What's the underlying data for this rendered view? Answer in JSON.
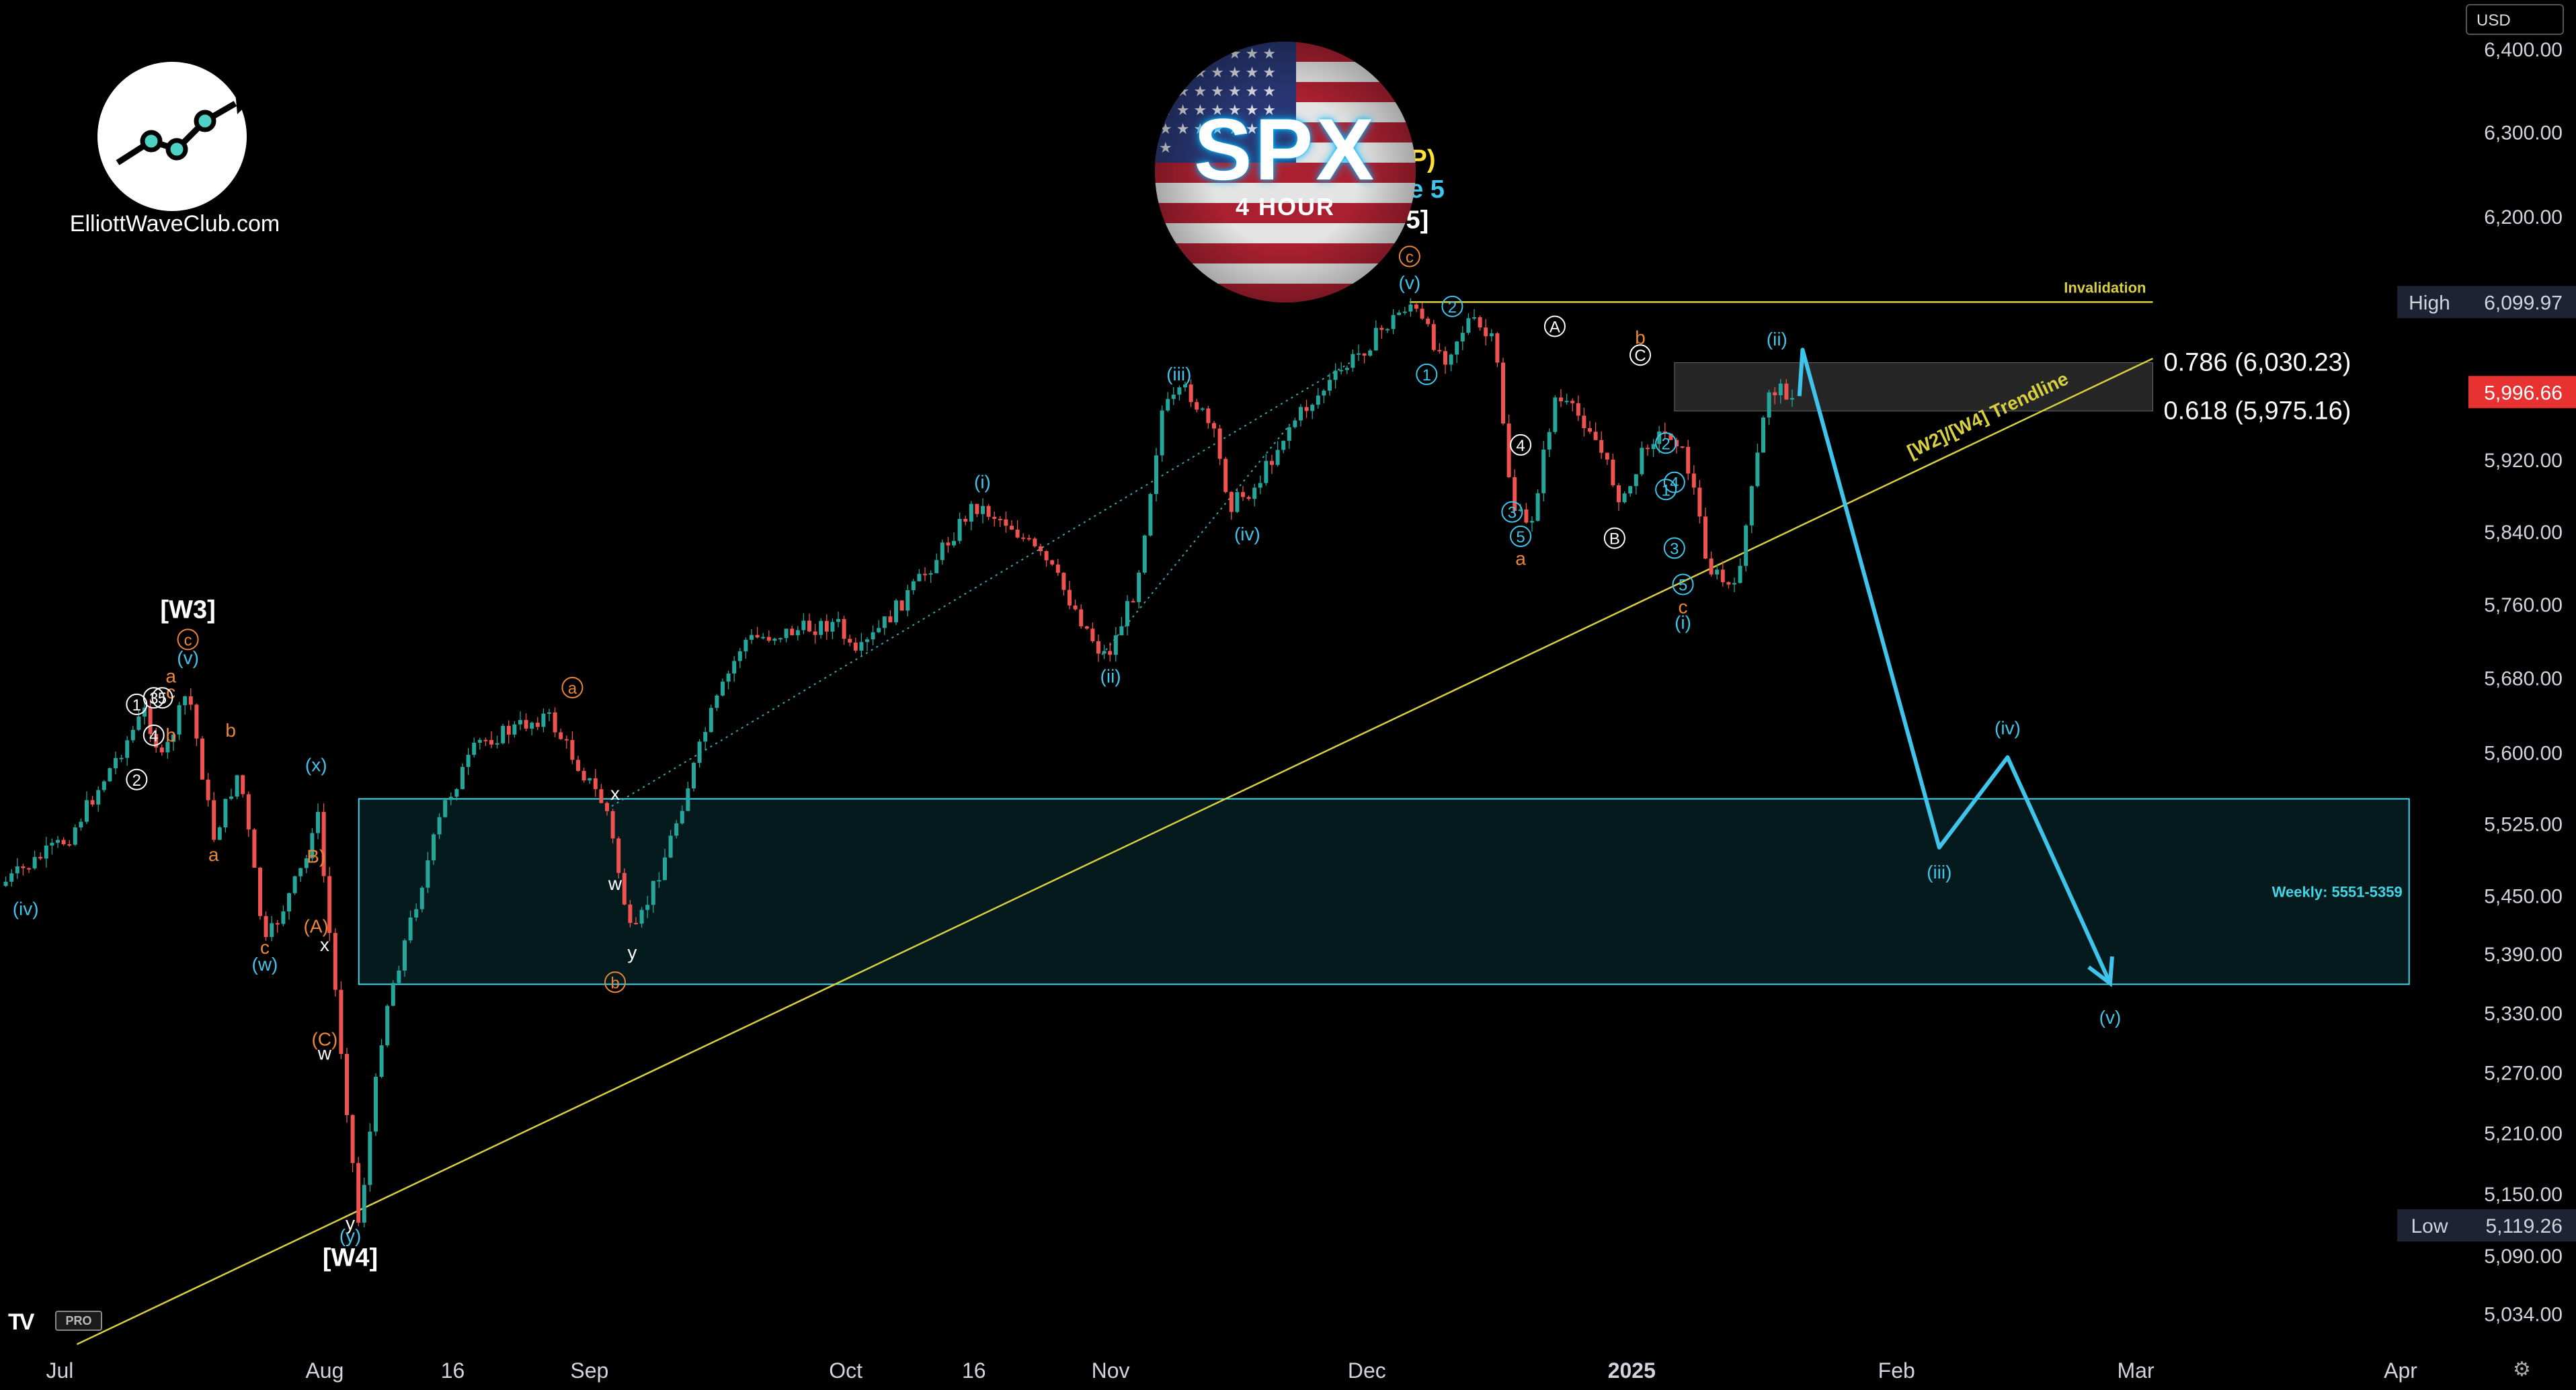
{
  "branding": {
    "site": "ElliottWaveClub.com",
    "ticker": "SPX",
    "timeframe": "4 HOUR",
    "platform_badge": "PRO",
    "currency": "USD"
  },
  "colors": {
    "background": "#000000",
    "bull_candle": "#26a69a",
    "bear_candle": "#ef5350",
    "wave_cyan": "#3fc4ec",
    "wave_orange": "#e8873a",
    "wave_white": "#ffffff",
    "trendline": "#d8d040",
    "zone_cyan": "#3fd6e8",
    "price_tag_red": "#e83232"
  },
  "chart_data": {
    "type": "candlestick",
    "title": "SPX",
    "subtitle": "4 HOUR",
    "x_axis": {
      "labels": [
        "Jul",
        "Aug",
        "16",
        "Sep",
        "Oct",
        "16",
        "Nov",
        "Dec",
        "2025",
        "Feb",
        "Mar",
        "Apr"
      ],
      "label_dates": [
        "2024-07-01",
        "2024-08-01",
        "2024-08-16",
        "2024-09-01",
        "2024-10-01",
        "2024-10-16",
        "2024-11-01",
        "2024-12-01",
        "2025-01-01",
        "2025-02-01",
        "2025-03-01",
        "2025-04-01"
      ],
      "range": [
        "2024-06-24",
        "2025-04-08"
      ]
    },
    "y_axis": {
      "position": "right",
      "labels": [
        "6,400.00",
        "6,300.00",
        "6,200.00",
        "5,920.00",
        "5,840.00",
        "5,760.00",
        "5,680.00",
        "5,600.00",
        "5,525.00",
        "5,450.00",
        "5,390.00",
        "5,330.00",
        "5,270.00",
        "5,210.00",
        "5,150.00",
        "5,090.00",
        "5,034.00"
      ],
      "range": [
        5005,
        6460
      ],
      "scale": "log"
    },
    "price_tags": {
      "high": {
        "label": "High",
        "value": "6,099.97"
      },
      "last": {
        "value": "5,996.66"
      },
      "low": {
        "label": "Low",
        "value": "5,119.26"
      }
    },
    "price_path": [
      [
        "2024-06-24",
        5460
      ],
      [
        "2024-07-02",
        5510
      ],
      [
        "2024-07-11",
        5645
      ],
      [
        "2024-07-13",
        5590
      ],
      [
        "2024-07-16",
        5668
      ],
      [
        "2024-07-19",
        5510
      ],
      [
        "2024-07-22",
        5582
      ],
      [
        "2024-07-25",
        5398
      ],
      [
        "2024-07-30",
        5490
      ],
      [
        "2024-07-31",
        5550
      ],
      [
        "2024-08-05",
        5119.26
      ],
      [
        "2024-08-08",
        5330
      ],
      [
        "2024-08-15",
        5545
      ],
      [
        "2024-08-19",
        5610
      ],
      [
        "2024-08-27",
        5640
      ],
      [
        "2024-09-03",
        5540
      ],
      [
        "2024-09-06",
        5402
      ],
      [
        "2024-09-10",
        5495
      ],
      [
        "2024-09-15",
        5635
      ],
      [
        "2024-09-19",
        5720
      ],
      [
        "2024-09-30",
        5740
      ],
      [
        "2024-10-02",
        5700
      ],
      [
        "2024-10-10",
        5790
      ],
      [
        "2024-10-16",
        5870
      ],
      [
        "2024-10-20",
        5850
      ],
      [
        "2024-10-25",
        5800
      ],
      [
        "2024-10-31",
        5705
      ],
      [
        "2024-11-01",
        5710
      ],
      [
        "2024-11-04",
        5780
      ],
      [
        "2024-11-07",
        5975
      ],
      [
        "2024-11-10",
        6000
      ],
      [
        "2024-11-13",
        5950
      ],
      [
        "2024-11-15",
        5870
      ],
      [
        "2024-11-18",
        5890
      ],
      [
        "2024-11-22",
        5960
      ],
      [
        "2024-11-29",
        6030
      ],
      [
        "2024-12-06",
        6099.97
      ],
      [
        "2024-12-10",
        6035
      ],
      [
        "2024-12-13",
        6080
      ],
      [
        "2024-12-16",
        6050
      ],
      [
        "2024-12-18",
        5870
      ],
      [
        "2024-12-20",
        5840
      ],
      [
        "2024-12-23",
        5990
      ],
      [
        "2024-12-27",
        5960
      ],
      [
        "2024-12-31",
        5870
      ],
      [
        "2025-01-03",
        5945
      ],
      [
        "2025-01-06",
        5950
      ],
      [
        "2025-01-08",
        5900
      ],
      [
        "2025-01-10",
        5800
      ],
      [
        "2025-01-13",
        5773
      ],
      [
        "2025-01-15",
        5880
      ],
      [
        "2025-01-17",
        6000
      ],
      [
        "2025-01-20",
        5996.66
      ]
    ],
    "projection": {
      "points": [
        [
          "2025-01-21",
          6045
        ],
        [
          "2025-02-06",
          5500
        ],
        [
          "2025-02-14",
          5595
        ],
        [
          "2025-02-26",
          5360
        ]
      ],
      "labels": [
        "(iii)",
        "(iv)",
        "(v)"
      ]
    },
    "trendline": {
      "label": "[W2]/[W4] Trendline",
      "from": [
        "2024-07-03",
        5005
      ],
      "to": [
        "2025-03-03",
        6035
      ]
    },
    "invalidation": {
      "label": "Invalidation",
      "value": 6099.97,
      "from": "2024-12-06",
      "to": "2025-03-03"
    },
    "fib_zone": {
      "label_upper": "0.786 (6,030.23)",
      "label_lower": "0.618 (5,975.16)",
      "upper": 6030.23,
      "lower": 5975.16,
      "from": "2025-01-06",
      "to": "2025-03-03"
    },
    "target_zone": {
      "label": "Weekly: 5551-5359",
      "upper": 5551,
      "lower": 5359,
      "from": "2024-08-05",
      "to": "2025-04-02"
    },
    "wave_labels": [
      {
        "text": "(TOP)",
        "date": "2024-12-05",
        "price": 6258,
        "color": "yellow",
        "style": "bold"
      },
      {
        "text": "Wave 5",
        "date": "2024-12-05",
        "price": 6222,
        "color": "cyan",
        "style": "bold"
      },
      {
        "text": "[W5]",
        "date": "2024-12-05",
        "price": 6186,
        "color": "white",
        "style": "bold"
      },
      {
        "text": "c",
        "date": "2024-12-06",
        "price": 6146,
        "color": "orange",
        "style": "circle"
      },
      {
        "text": "(v)",
        "date": "2024-12-06",
        "price": 6115,
        "color": "cyan"
      },
      {
        "text": "[W3]",
        "date": "2024-07-16",
        "price": 5745,
        "color": "white",
        "style": "bold"
      },
      {
        "text": "c",
        "date": "2024-07-16",
        "price": 5715,
        "color": "orange",
        "style": "circle"
      },
      {
        "text": "(v)",
        "date": "2024-07-16",
        "price": 5695,
        "color": "cyan"
      },
      {
        "text": "a",
        "date": "2024-07-14",
        "price": 5675,
        "color": "orange"
      },
      {
        "text": "c",
        "date": "2024-07-14",
        "price": 5658,
        "color": "orange"
      },
      {
        "text": "1",
        "date": "2024-07-10",
        "price": 5645,
        "color": "white",
        "style": "circle"
      },
      {
        "text": "3",
        "date": "2024-07-12",
        "price": 5652,
        "color": "white",
        "style": "circle"
      },
      {
        "text": "5",
        "date": "2024-07-13",
        "price": 5652,
        "color": "white",
        "style": "circle"
      },
      {
        "text": "4",
        "date": "2024-07-12",
        "price": 5612,
        "color": "white",
        "style": "circle"
      },
      {
        "text": "b",
        "date": "2024-07-14",
        "price": 5612,
        "color": "orange"
      },
      {
        "text": "2",
        "date": "2024-07-10",
        "price": 5565,
        "color": "white",
        "style": "circle"
      },
      {
        "text": "b",
        "date": "2024-07-21",
        "price": 5617,
        "color": "orange"
      },
      {
        "text": "a",
        "date": "2024-07-19",
        "price": 5486,
        "color": "orange"
      },
      {
        "text": "(x)",
        "date": "2024-07-31",
        "price": 5580,
        "color": "cyan"
      },
      {
        "text": "B)",
        "date": "2024-07-31",
        "price": 5484,
        "color": "orange"
      },
      {
        "text": "(A)",
        "date": "2024-07-31",
        "price": 5412,
        "color": "orange"
      },
      {
        "text": "x",
        "date": "2024-08-01",
        "price": 5393,
        "color": "white"
      },
      {
        "text": "(iv)",
        "date": "2024-06-27",
        "price": 5430,
        "color": "cyan"
      },
      {
        "text": "c",
        "date": "2024-07-25",
        "price": 5390,
        "color": "orange"
      },
      {
        "text": "(w)",
        "date": "2024-07-25",
        "price": 5373,
        "color": "cyan"
      },
      {
        "text": "(C)",
        "date": "2024-08-01",
        "price": 5297,
        "color": "orange"
      },
      {
        "text": "w",
        "date": "2024-08-01",
        "price": 5283,
        "color": "white"
      },
      {
        "text": "y",
        "date": "2024-08-04",
        "price": 5115,
        "color": "white"
      },
      {
        "text": "(y)",
        "date": "2024-08-04",
        "price": 5103,
        "color": "cyan"
      },
      {
        "text": "[W4]",
        "date": "2024-08-04",
        "price": 5080,
        "color": "white",
        "style": "bold"
      },
      {
        "text": "a",
        "date": "2024-08-30",
        "price": 5663,
        "color": "orange",
        "style": "circle"
      },
      {
        "text": "x",
        "date": "2024-09-04",
        "price": 5550,
        "color": "white"
      },
      {
        "text": "w",
        "date": "2024-09-04",
        "price": 5456,
        "color": "white"
      },
      {
        "text": "y",
        "date": "2024-09-06",
        "price": 5385,
        "color": "white"
      },
      {
        "text": "b",
        "date": "2024-09-04",
        "price": 5355,
        "color": "orange",
        "style": "circle"
      },
      {
        "text": "(i)",
        "date": "2024-10-17",
        "price": 5888,
        "color": "cyan"
      },
      {
        "text": "(ii)",
        "date": "2024-11-01",
        "price": 5675,
        "color": "cyan"
      },
      {
        "text": "(iii)",
        "date": "2024-11-09",
        "price": 6010,
        "color": "cyan"
      },
      {
        "text": "(iv)",
        "date": "2024-11-17",
        "price": 5830,
        "color": "cyan"
      },
      {
        "text": "1",
        "date": "2024-12-08",
        "price": 6010,
        "color": "cyan",
        "style": "circle"
      },
      {
        "text": "2",
        "date": "2024-12-11",
        "price": 6088,
        "color": "cyan",
        "style": "circle"
      },
      {
        "text": "A",
        "date": "2024-12-23",
        "price": 6065,
        "color": "white",
        "style": "circle"
      },
      {
        "text": "4",
        "date": "2024-12-19",
        "price": 5930,
        "color": "white",
        "style": "circle"
      },
      {
        "text": "3",
        "date": "2024-12-18",
        "price": 5855,
        "color": "cyan",
        "style": "circle"
      },
      {
        "text": "5",
        "date": "2024-12-19",
        "price": 5828,
        "color": "cyan",
        "style": "circle"
      },
      {
        "text": "a",
        "date": "2024-12-19",
        "price": 5803,
        "color": "orange"
      },
      {
        "text": "b",
        "date": "2025-01-02",
        "price": 6052,
        "color": "orange"
      },
      {
        "text": "C",
        "date": "2025-01-02",
        "price": 6032,
        "color": "white",
        "style": "circle"
      },
      {
        "text": "B",
        "date": "2024-12-30",
        "price": 5826,
        "color": "white",
        "style": "circle"
      },
      {
        "text": "2",
        "date": "2025-01-05",
        "price": 5932,
        "color": "cyan",
        "style": "circle"
      },
      {
        "text": "1",
        "date": "2025-01-05",
        "price": 5880,
        "color": "cyan",
        "style": "circle"
      },
      {
        "text": "4",
        "date": "2025-01-06",
        "price": 5888,
        "color": "cyan",
        "style": "circle"
      },
      {
        "text": "3",
        "date": "2025-01-06",
        "price": 5815,
        "color": "cyan",
        "style": "circle"
      },
      {
        "text": "5",
        "date": "2025-01-07",
        "price": 5775,
        "color": "cyan",
        "style": "circle"
      },
      {
        "text": "c",
        "date": "2025-01-07",
        "price": 5750,
        "color": "orange"
      },
      {
        "text": "(i)",
        "date": "2025-01-07",
        "price": 5733,
        "color": "cyan"
      },
      {
        "text": "(ii)",
        "date": "2025-01-18",
        "price": 6050,
        "color": "cyan"
      }
    ]
  }
}
